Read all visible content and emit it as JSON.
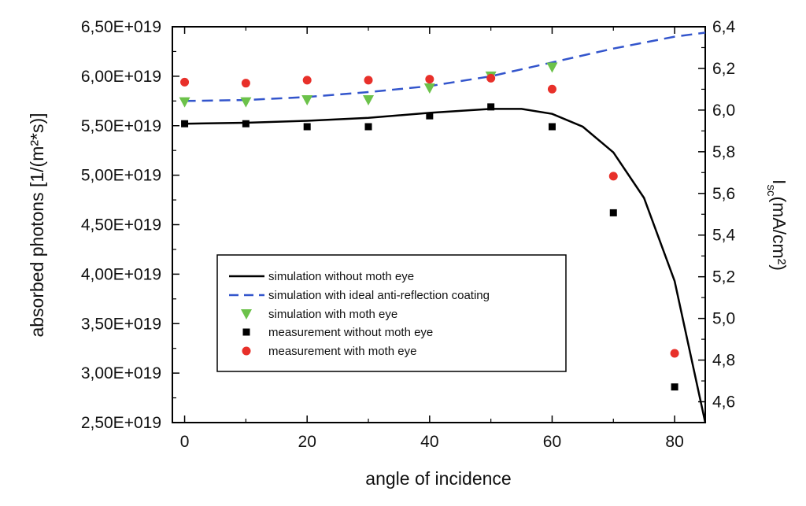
{
  "chart_data": {
    "type": "scatter",
    "xlabel": "angle of incidence",
    "ylabel_left": "absorbed photons [1/(m²*s)]",
    "ylabel_right": "Isc(mA/cm²)",
    "ylabel_right_main": "I",
    "ylabel_right_sub": "sc",
    "ylabel_right_unit": "(mA/cm²)",
    "xlim": [
      -2,
      85
    ],
    "ylim_left": [
      2.5e+19,
      6.5e+19
    ],
    "ylim_right": [
      4.5,
      6.4
    ],
    "x_ticks": [
      0,
      20,
      40,
      60,
      80
    ],
    "x_tick_labels": [
      "0",
      "20",
      "40",
      "60",
      "80"
    ],
    "y_left_ticks": [
      2.5e+19,
      3e+19,
      3.5e+19,
      4e+19,
      4.5e+19,
      5e+19,
      5.5e+19,
      6e+19,
      6.5e+19
    ],
    "y_left_tick_labels": [
      "2,50E+019",
      "3,00E+019",
      "3,50E+019",
      "4,00E+019",
      "4,50E+019",
      "5,00E+019",
      "5,50E+019",
      "6,00E+019",
      "6,50E+019"
    ],
    "y_right_ticks": [
      4.6,
      4.8,
      5.0,
      5.2,
      5.4,
      5.6,
      5.8,
      6.0,
      6.2,
      6.4
    ],
    "y_right_tick_labels": [
      "4,6",
      "4,8",
      "5,0",
      "5,2",
      "5,4",
      "5,6",
      "5,8",
      "6,0",
      "6,2",
      "6,4"
    ],
    "grid": false,
    "legend_position": "lower-left",
    "series": [
      {
        "name": "simulation without moth eye",
        "kind": "line-solid",
        "color": "#000000",
        "x": [
          0,
          10,
          20,
          30,
          40,
          50,
          55,
          60,
          65,
          70,
          75,
          80,
          85
        ],
        "y": [
          5.52e+19,
          5.53e+19,
          5.55e+19,
          5.58e+19,
          5.63e+19,
          5.67e+19,
          5.67e+19,
          5.62e+19,
          5.49e+19,
          5.23e+19,
          4.77e+19,
          3.93e+19,
          2.5e+19
        ]
      },
      {
        "name": "simulation with ideal anti-reflection coating",
        "kind": "line-dashed",
        "color": "#3355cc",
        "x": [
          0,
          10,
          20,
          30,
          40,
          50,
          60,
          70,
          80,
          85
        ],
        "y": [
          5.75e+19,
          5.76e+19,
          5.79e+19,
          5.84e+19,
          5.9e+19,
          6e+19,
          6.14e+19,
          6.28e+19,
          6.4e+19,
          6.44e+19
        ]
      },
      {
        "name": "simulation with moth eye",
        "kind": "marker-triangle-down",
        "color": "#6cc24a",
        "x": [
          0,
          10,
          20,
          30,
          40,
          50,
          60
        ],
        "y": [
          5.74e+19,
          5.74e+19,
          5.76e+19,
          5.76e+19,
          5.88e+19,
          6e+19,
          6.09e+19
        ]
      },
      {
        "name": "measurement without moth eye",
        "kind": "marker-square",
        "color": "#000000",
        "x": [
          0,
          10,
          20,
          30,
          40,
          50,
          60,
          70,
          80
        ],
        "y": [
          5.52e+19,
          5.52e+19,
          5.49e+19,
          5.49e+19,
          5.6e+19,
          5.69e+19,
          5.49e+19,
          4.62e+19,
          2.86e+19
        ]
      },
      {
        "name": "measurement with moth eye",
        "kind": "marker-circle",
        "color": "#e8302a",
        "x": [
          0,
          10,
          20,
          30,
          40,
          50,
          60,
          70,
          80
        ],
        "y": [
          5.94e+19,
          5.93e+19,
          5.96e+19,
          5.96e+19,
          5.97e+19,
          5.98e+19,
          5.87e+19,
          4.99e+19,
          3.2e+19
        ]
      }
    ]
  }
}
